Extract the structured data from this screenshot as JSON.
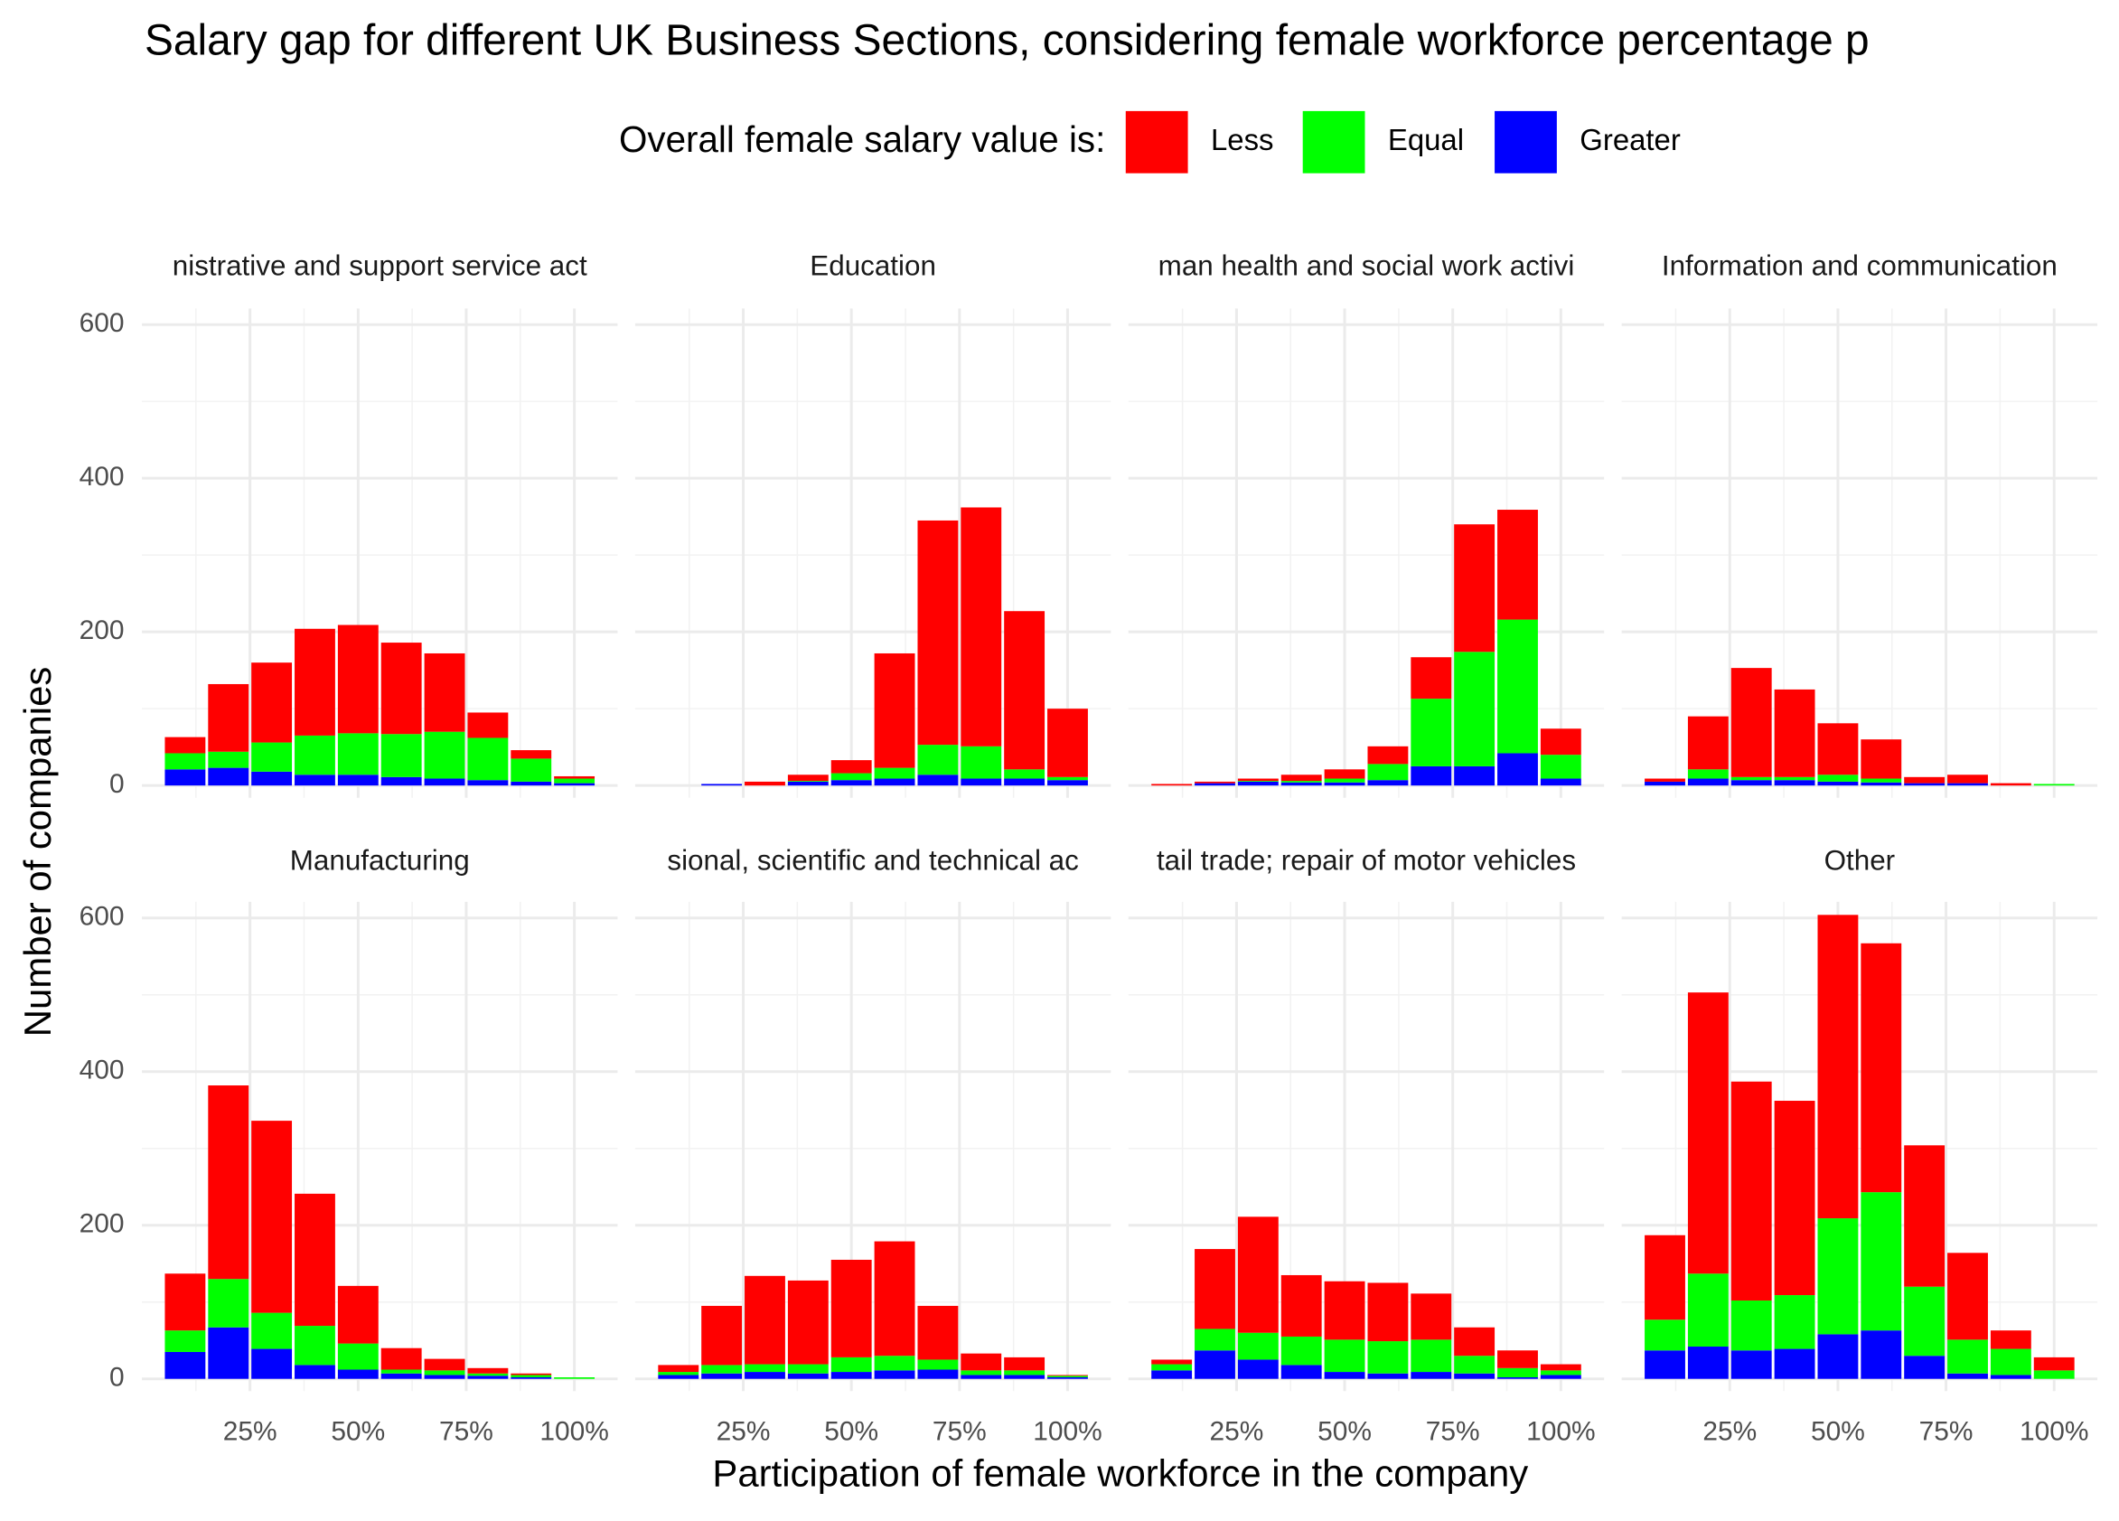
{
  "chart_data": {
    "type": "histogram",
    "title": "Salary gap for different UK Business Sections, considering female workforce percentage p",
    "x_label": "Participation of female workforce in the company",
    "y_label": "Number of companies",
    "legend_title": "Overall female salary value is:",
    "series": [
      {
        "name": "Less",
        "color": "#ff0000"
      },
      {
        "name": "Equal",
        "color": "#00ff00"
      },
      {
        "name": "Greater",
        "color": "#0000ff"
      }
    ],
    "bins": [
      5,
      15,
      25,
      35,
      45,
      55,
      65,
      75,
      85,
      95,
      105
    ],
    "xlim": [
      0,
      110
    ],
    "xticks": [
      {
        "value": 25,
        "label": "25%"
      },
      {
        "value": 50,
        "label": "50%"
      },
      {
        "value": 75,
        "label": "75%"
      },
      {
        "value": 100,
        "label": "100%"
      }
    ],
    "x_minor_grid": [
      12.5,
      37.5,
      62.5,
      87.5
    ],
    "ylim": [
      -16,
      621
    ],
    "yticks": [
      0,
      200,
      400,
      600
    ],
    "y_minor_grid": [
      100,
      300,
      500
    ],
    "grid": true,
    "facets": [
      {
        "title": "nistrative and support service act",
        "series": [
          {
            "values": [
              21,
              88,
              104,
              139,
              141,
              119,
              102,
              33,
              11,
              3
            ]
          },
          {
            "values": [
              21,
              21,
              38,
              51,
              54,
              56,
              61,
              55,
              30,
              6
            ]
          },
          {
            "values": [
              21,
              23,
              18,
              14,
              14,
              11,
              9,
              7,
              5,
              3
            ]
          }
        ]
      },
      {
        "title": "Education",
        "series": [
          {
            "values": [
              0,
              0,
              5,
              8,
              17,
              149,
              292,
              311,
              206,
              89
            ]
          },
          {
            "values": [
              0,
              0,
              0,
              1,
              9,
              14,
              39,
              42,
              12,
              4
            ]
          },
          {
            "values": [
              0,
              2,
              0,
              5,
              7,
              9,
              14,
              9,
              9,
              7
            ]
          }
        ]
      },
      {
        "title": "man health and social work activi",
        "series": [
          {
            "values": [
              2,
              2,
              3,
              8,
              12,
              23,
              54,
              166,
              143,
              34
            ]
          },
          {
            "values": [
              0,
              0,
              1,
              2,
              5,
              21,
              88,
              149,
              174,
              31
            ]
          },
          {
            "values": [
              0,
              3,
              5,
              4,
              4,
              7,
              25,
              25,
              42,
              9
            ]
          }
        ]
      },
      {
        "title": "Information and communication",
        "series": [
          {
            "values": [
              4,
              69,
              142,
              114,
              67,
              51,
              8,
              11,
              3,
              0
            ]
          },
          {
            "values": [
              0,
              12,
              4,
              4,
              9,
              5,
              0,
              0,
              0,
              2
            ]
          },
          {
            "values": [
              5,
              9,
              7,
              7,
              5,
              4,
              3,
              3,
              0,
              0
            ]
          }
        ]
      },
      {
        "title": "Manufacturing",
        "series": [
          {
            "values": [
              74,
              252,
              250,
              172,
              75,
              28,
              15,
              7,
              2,
              0
            ]
          },
          {
            "values": [
              28,
              63,
              47,
              51,
              34,
              5,
              6,
              3,
              3,
              2
            ]
          },
          {
            "values": [
              35,
              67,
              39,
              18,
              12,
              7,
              5,
              4,
              2,
              0
            ]
          }
        ]
      },
      {
        "title": "sional, scientific and technical ac",
        "series": [
          {
            "values": [
              9,
              77,
              115,
              109,
              127,
              149,
              70,
              22,
              17,
              1
            ]
          },
          {
            "values": [
              4,
              11,
              10,
              12,
              19,
              19,
              13,
              6,
              6,
              2
            ]
          },
          {
            "values": [
              5,
              7,
              9,
              7,
              9,
              11,
              12,
              5,
              5,
              2
            ]
          }
        ]
      },
      {
        "title": "tail trade; repair of motor vehicles",
        "series": [
          {
            "values": [
              6,
              104,
              151,
              80,
              76,
              76,
              60,
              37,
              23,
              8
            ]
          },
          {
            "values": [
              8,
              28,
              35,
              37,
              42,
              42,
              42,
              23,
              12,
              6
            ]
          },
          {
            "values": [
              11,
              37,
              25,
              18,
              9,
              7,
              9,
              7,
              2,
              5
            ]
          }
        ]
      },
      {
        "title": "Other",
        "series": [
          {
            "values": [
              110,
              366,
              285,
              253,
              395,
              324,
              184,
              113,
              24,
              17
            ]
          },
          {
            "values": [
              40,
              95,
              65,
              70,
              151,
              180,
              90,
              44,
              34,
              11
            ]
          },
          {
            "values": [
              37,
              42,
              37,
              39,
              58,
              63,
              30,
              7,
              5,
              0
            ]
          }
        ]
      }
    ]
  }
}
